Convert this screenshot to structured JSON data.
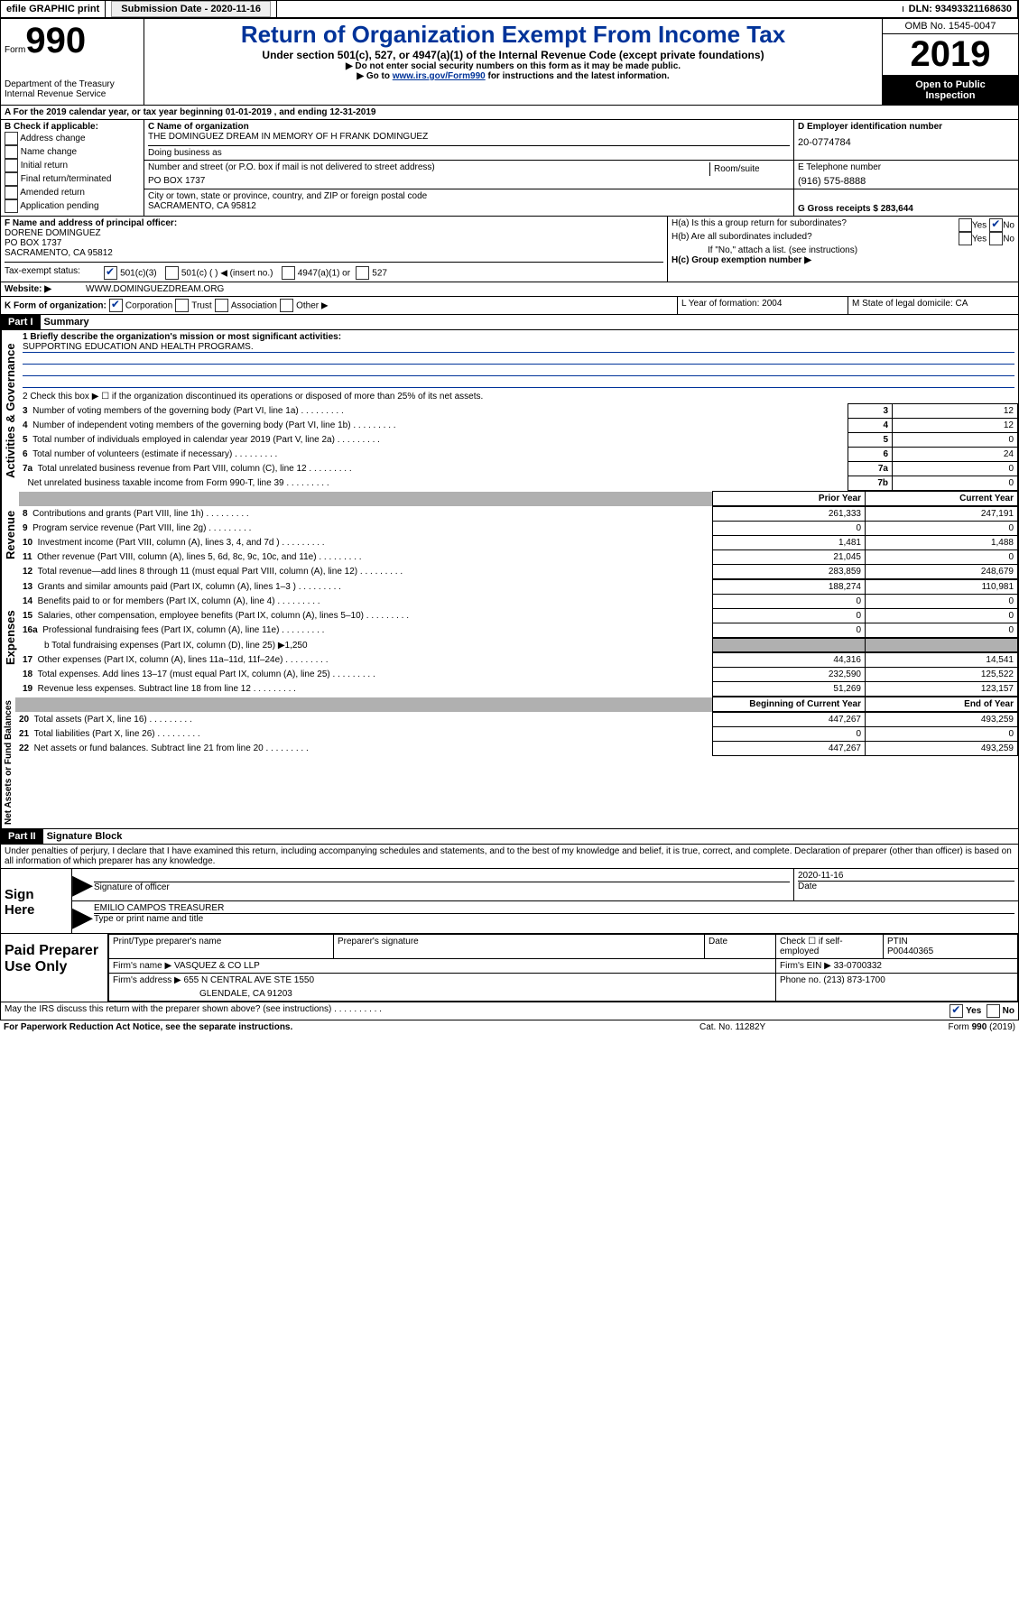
{
  "topbar": {
    "efile": "efile GRAPHIC print",
    "submission_label": "Submission Date - 2020-11-16",
    "dln_label": "DLN: 93493321168630"
  },
  "header": {
    "form_label": "Form",
    "form_number": "990",
    "title": "Return of Organization Exempt From Income Tax",
    "subtitle": "Under section 501(c), 527, or 4947(a)(1) of the Internal Revenue Code (except private foundations)",
    "note1": "▶ Do not enter social security numbers on this form as it may be made public.",
    "note2_a": "▶ Go to ",
    "note2_link": "www.irs.gov/Form990",
    "note2_b": " for instructions and the latest information.",
    "dept": "Department of the Treasury",
    "irs": "Internal Revenue Service",
    "omb": "OMB No. 1545-0047",
    "year": "2019",
    "inspect1": "Open to Public",
    "inspect2": "Inspection"
  },
  "sectionA": {
    "period": "A For the 2019 calendar year, or tax year beginning 01-01-2019   , and ending 12-31-2019",
    "b_label": "B Check if applicable:",
    "b_items": [
      "Address change",
      "Name change",
      "Initial return",
      "Final return/terminated",
      "Amended return",
      "Application pending"
    ],
    "c_name_label": "C Name of organization",
    "c_name": "THE DOMINGUEZ DREAM IN MEMORY OF H FRANK DOMINGUEZ",
    "dba_label": "Doing business as",
    "addr_label": "Number and street (or P.O. box if mail is not delivered to street address)",
    "room_label": "Room/suite",
    "addr": "PO BOX 1737",
    "city_label": "City or town, state or province, country, and ZIP or foreign postal code",
    "city": "SACRAMENTO, CA  95812",
    "d_label": "D Employer identification number",
    "ein": "20-0774784",
    "e_label": "E Telephone number",
    "phone": "(916) 575-8888",
    "g_label": "G Gross receipts $ 283,644",
    "f_label": "F  Name and address of principal officer:",
    "f_name": "DORENE DOMINGUEZ",
    "f_addr": "PO BOX 1737",
    "f_city": "SACRAMENTO, CA  95812",
    "ha": "H(a)  Is this a group return for subordinates?",
    "hb": "H(b)  Are all subordinates included?",
    "hb_note": "If \"No,\" attach a list. (see instructions)",
    "hc": "H(c)  Group exemption number ▶",
    "yes": "Yes",
    "no": "No",
    "tax_status_label": "Tax-exempt status:",
    "ts_501c3": "501(c)(3)",
    "ts_501c": "501(c) (   ) ◀ (insert no.)",
    "ts_4947": "4947(a)(1) or",
    "ts_527": "527",
    "website_label": "Website: ▶",
    "website": "WWW.DOMINGUEZDREAM.ORG",
    "k_label": "K Form of organization:",
    "k_corp": "Corporation",
    "k_trust": "Trust",
    "k_assoc": "Association",
    "k_other": "Other ▶",
    "l_label": "L Year of formation: 2004",
    "m_label": "M State of legal domicile: CA"
  },
  "part1": {
    "title": "Part I",
    "summary": "Summary",
    "labels": {
      "activities": "Activities & Governance",
      "revenue": "Revenue",
      "expenses": "Expenses",
      "netassets": "Net Assets or Fund Balances"
    },
    "line1_label": "1  Briefly describe the organization's mission or most significant activities:",
    "line1_text": "SUPPORTING EDUCATION AND HEALTH PROGRAMS.",
    "line2": "2   Check this box ▶ ☐  if the organization discontinued its operations or disposed of more than 25% of its net assets.",
    "rows_top": [
      {
        "n": "3",
        "label": "Number of voting members of the governing body (Part VI, line 1a)",
        "box": "3",
        "val": "12"
      },
      {
        "n": "4",
        "label": "Number of independent voting members of the governing body (Part VI, line 1b)",
        "box": "4",
        "val": "12"
      },
      {
        "n": "5",
        "label": "Total number of individuals employed in calendar year 2019 (Part V, line 2a)",
        "box": "5",
        "val": "0"
      },
      {
        "n": "6",
        "label": "Total number of volunteers (estimate if necessary)",
        "box": "6",
        "val": "24"
      },
      {
        "n": "7a",
        "label": "Total unrelated business revenue from Part VIII, column (C), line 12",
        "box": "7a",
        "val": "0"
      },
      {
        "n": "",
        "label": "Net unrelated business taxable income from Form 990-T, line 39",
        "box": "7b",
        "val": "0"
      }
    ],
    "prior_label": "Prior Year",
    "current_label": "Current Year",
    "rev_rows": [
      {
        "n": "8",
        "label": "Contributions and grants (Part VIII, line 1h)",
        "py": "261,333",
        "cy": "247,191"
      },
      {
        "n": "9",
        "label": "Program service revenue (Part VIII, line 2g)",
        "py": "0",
        "cy": "0"
      },
      {
        "n": "10",
        "label": "Investment income (Part VIII, column (A), lines 3, 4, and 7d )",
        "py": "1,481",
        "cy": "1,488"
      },
      {
        "n": "11",
        "label": "Other revenue (Part VIII, column (A), lines 5, 6d, 8c, 9c, 10c, and 11e)",
        "py": "21,045",
        "cy": "0"
      },
      {
        "n": "12",
        "label": "Total revenue—add lines 8 through 11 (must equal Part VIII, column (A), line 12)",
        "py": "283,859",
        "cy": "248,679"
      }
    ],
    "exp_rows": [
      {
        "n": "13",
        "label": "Grants and similar amounts paid (Part IX, column (A), lines 1–3 )",
        "py": "188,274",
        "cy": "110,981"
      },
      {
        "n": "14",
        "label": "Benefits paid to or for members (Part IX, column (A), line 4)",
        "py": "0",
        "cy": "0"
      },
      {
        "n": "15",
        "label": "Salaries, other compensation, employee benefits (Part IX, column (A), lines 5–10)",
        "py": "0",
        "cy": "0"
      },
      {
        "n": "16a",
        "label": "Professional fundraising fees (Part IX, column (A), line 11e)",
        "py": "0",
        "cy": "0"
      }
    ],
    "line16b": "b  Total fundraising expenses (Part IX, column (D), line 25) ▶1,250",
    "exp_rows2": [
      {
        "n": "17",
        "label": "Other expenses (Part IX, column (A), lines 11a–11d, 11f–24e)",
        "py": "44,316",
        "cy": "14,541"
      },
      {
        "n": "18",
        "label": "Total expenses. Add lines 13–17 (must equal Part IX, column (A), line 25)",
        "py": "232,590",
        "cy": "125,522"
      },
      {
        "n": "19",
        "label": "Revenue less expenses. Subtract line 18 from line 12",
        "py": "51,269",
        "cy": "123,157"
      }
    ],
    "begin_label": "Beginning of Current Year",
    "end_label": "End of Year",
    "na_rows": [
      {
        "n": "20",
        "label": "Total assets (Part X, line 16)",
        "py": "447,267",
        "cy": "493,259"
      },
      {
        "n": "21",
        "label": "Total liabilities (Part X, line 26)",
        "py": "0",
        "cy": "0"
      },
      {
        "n": "22",
        "label": "Net assets or fund balances. Subtract line 21 from line 20",
        "py": "447,267",
        "cy": "493,259"
      }
    ]
  },
  "part2": {
    "title": "Part II",
    "sig": "Signature Block",
    "declaration": "Under penalties of perjury, I declare that I have examined this return, including accompanying schedules and statements, and to the best of my knowledge and belief, it is true, correct, and complete. Declaration of preparer (other than officer) is based on all information of which preparer has any knowledge.",
    "signhere": "Sign Here",
    "sig_officer": "Signature of officer",
    "date": "Date",
    "date_val": "2020-11-16",
    "officer_name": "EMILIO CAMPOS  TREASURER",
    "type_name": "Type or print name and title",
    "paid": "Paid Preparer Use Only",
    "prep_name_label": "Print/Type preparer's name",
    "prep_sig_label": "Preparer's signature",
    "date_label": "Date",
    "check_label": "Check ☐ if self-employed",
    "ptin_label": "PTIN",
    "ptin": "P00440365",
    "firm_name_label": "Firm's name    ▶",
    "firm_name": "VASQUEZ & CO LLP",
    "firm_ein_label": "Firm's EIN ▶ 33-0700332",
    "firm_addr_label": "Firm's address ▶",
    "firm_addr": "655 N CENTRAL AVE STE 1550",
    "firm_city": "GLENDALE, CA  91203",
    "firm_phone_label": "Phone no. (213) 873-1700",
    "discuss": "May the IRS discuss this return with the preparer shown above? (see instructions)",
    "paperwork": "For Paperwork Reduction Act Notice, see the separate instructions.",
    "catno": "Cat. No. 11282Y",
    "formno": "Form 990 (2019)"
  }
}
